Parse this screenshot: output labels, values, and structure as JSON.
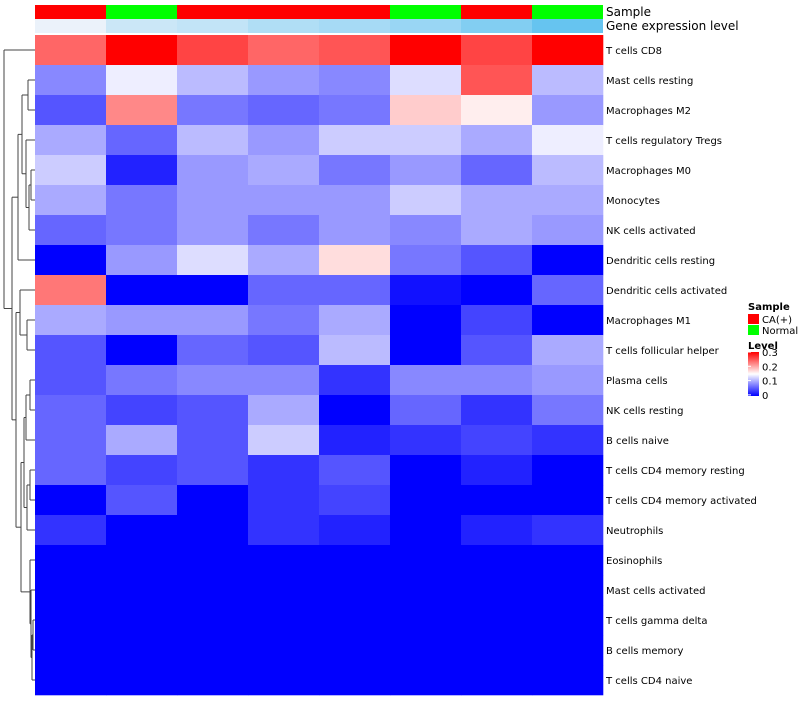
{
  "chart_data": {
    "type": "heatmap",
    "title": "",
    "annotation_tracks": [
      {
        "label": "Sample",
        "values": [
          "CA(+)",
          "Normal",
          "CA(+)",
          "CA(+)",
          "CA(+)",
          "Normal",
          "CA(+)",
          "Normal"
        ]
      },
      {
        "label": "Gene expression level",
        "values": [
          0.01,
          0.08,
          0.1,
          0.14,
          0.16,
          0.19,
          0.24,
          0.3
        ]
      }
    ],
    "rows": [
      "T cells CD8",
      "Mast cells resting",
      "Macrophages M2",
      "T cells regulatory  Tregs",
      "Macrophages M0",
      "Monocytes",
      "NK cells activated",
      "Dendritic cells resting",
      "Dendritic cells activated",
      "Macrophages M1",
      "T cells follicular helper",
      "Plasma cells",
      "NK cells resting",
      "B cells naive",
      "T cells CD4 memory resting",
      "T cells CD4 memory activated",
      "Neutrophils",
      "Eosinophils",
      "Mast cells activated",
      "T cells gamma delta",
      "B cells memory",
      "T cells CD4 naive"
    ],
    "values": [
      [
        0.24,
        0.3,
        0.26,
        0.24,
        0.25,
        0.3,
        0.26,
        0.3
      ],
      [
        0.08,
        0.14,
        0.11,
        0.09,
        0.08,
        0.13,
        0.25,
        0.11
      ],
      [
        0.05,
        0.22,
        0.07,
        0.06,
        0.07,
        0.18,
        0.16,
        0.09
      ],
      [
        0.1,
        0.06,
        0.11,
        0.09,
        0.12,
        0.12,
        0.1,
        0.14
      ],
      [
        0.12,
        0.02,
        0.09,
        0.1,
        0.07,
        0.09,
        0.06,
        0.11
      ],
      [
        0.1,
        0.07,
        0.09,
        0.09,
        0.09,
        0.12,
        0.1,
        0.1
      ],
      [
        0.06,
        0.07,
        0.09,
        0.07,
        0.09,
        0.08,
        0.1,
        0.09
      ],
      [
        0.0,
        0.09,
        0.13,
        0.1,
        0.17,
        0.07,
        0.05,
        0.0
      ],
      [
        0.23,
        0.0,
        0.0,
        0.06,
        0.06,
        0.01,
        0.0,
        0.06
      ],
      [
        0.1,
        0.09,
        0.09,
        0.07,
        0.1,
        0.0,
        0.04,
        0.0
      ],
      [
        0.05,
        0.0,
        0.06,
        0.05,
        0.11,
        0.0,
        0.05,
        0.1
      ],
      [
        0.05,
        0.07,
        0.08,
        0.08,
        0.03,
        0.08,
        0.08,
        0.09
      ],
      [
        0.06,
        0.04,
        0.05,
        0.1,
        0.0,
        0.06,
        0.03,
        0.07
      ],
      [
        0.06,
        0.1,
        0.05,
        0.12,
        0.02,
        0.03,
        0.04,
        0.03
      ],
      [
        0.06,
        0.04,
        0.05,
        0.03,
        0.05,
        0.0,
        0.02,
        0.0
      ],
      [
        0.0,
        0.05,
        0.0,
        0.03,
        0.04,
        0.0,
        0.0,
        0.0
      ],
      [
        0.03,
        0.0,
        0.0,
        0.03,
        0.02,
        0.0,
        0.02,
        0.03
      ],
      [
        0.0,
        0.0,
        0.0,
        0.0,
        0.0,
        0.0,
        0.0,
        0.0
      ],
      [
        0.0,
        0.0,
        0.0,
        0.0,
        0.0,
        0.0,
        0.0,
        0.0
      ],
      [
        0.0,
        0.0,
        0.0,
        0.0,
        0.0,
        0.0,
        0.0,
        0.0
      ],
      [
        0.0,
        0.0,
        0.0,
        0.0,
        0.0,
        0.0,
        0.0,
        0.0
      ],
      [
        0.0,
        0.0,
        0.0,
        0.0,
        0.0,
        0.0,
        0.0,
        0.0
      ]
    ],
    "color_scale": {
      "min": 0,
      "mid": 0.15,
      "max": 0.3,
      "low": "#0000FF",
      "mid_color": "#FFFFFF",
      "high": "#FF0000"
    },
    "legend": {
      "sample_title": "Sample",
      "sample_items": [
        {
          "label": "CA(+)",
          "color": "#FF0000"
        },
        {
          "label": "Normal",
          "color": "#00FF00"
        }
      ],
      "level_title": "Level",
      "level_ticks": [
        "0.3",
        "0.2",
        "0.1",
        "0"
      ],
      "placement": "right"
    },
    "row_dendrogram": true
  }
}
